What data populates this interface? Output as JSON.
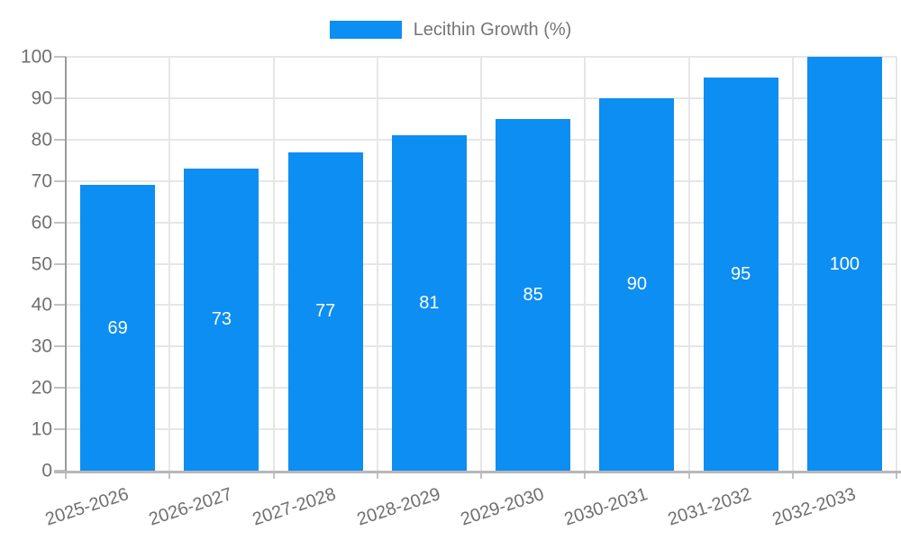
{
  "legend": {
    "label": "Lecithin Growth (%)"
  },
  "colors": {
    "bar": "#0d8ef2",
    "grid": "#e6e6e6",
    "y_axis_line": "#9a9a9a",
    "x_axis_line": "#b8b8b8",
    "tick_mark": "#c2c2c2",
    "tick_label_text": "#707070",
    "legend_text": "#757575",
    "value_label_text": "#ffffff",
    "background": "#ffffff"
  },
  "chart_data": {
    "type": "bar",
    "title": "",
    "xlabel": "",
    "ylabel": "",
    "categories": [
      "2025-2026",
      "2026-2027",
      "2027-2028",
      "2028-2029",
      "2029-2030",
      "2030-2031",
      "2031-2032",
      "2032-2033"
    ],
    "series": [
      {
        "name": "Lecithin Growth (%)",
        "values": [
          69,
          73,
          77,
          81,
          85,
          90,
          95,
          100
        ]
      }
    ],
    "ylim": [
      0,
      100
    ],
    "yticks": [
      0,
      10,
      20,
      30,
      40,
      50,
      60,
      70,
      80,
      90,
      100
    ],
    "grid": true,
    "legend_position": "top-center",
    "x_label_rotation_deg": -18,
    "value_label_position": "inside-center"
  }
}
